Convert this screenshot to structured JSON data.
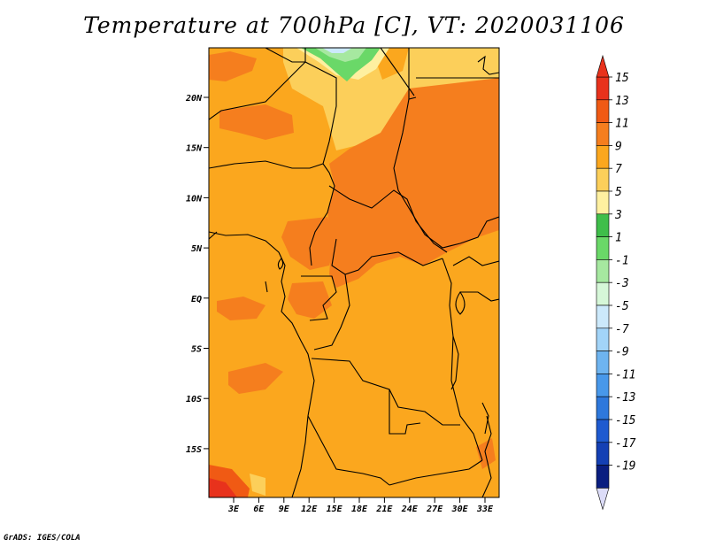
{
  "title": "Temperature at 700hPa [C], VT: 2020031106",
  "credit": "GrADS: IGES/COLA",
  "map": {
    "lon_ticks": [
      "3E",
      "6E",
      "9E",
      "12E",
      "15E",
      "18E",
      "21E",
      "24E",
      "27E",
      "30E",
      "33E"
    ],
    "lat_ticks": [
      "20N",
      "15N",
      "10N",
      "5N",
      "EQ",
      "5S",
      "10S",
      "15S"
    ]
  },
  "colorbar": {
    "labels": [
      "15",
      "13",
      "11",
      "9",
      "7",
      "5",
      "3",
      "1",
      "-1",
      "-3",
      "-5",
      "-7",
      "-9",
      "-11",
      "-13",
      "-15",
      "-17",
      "-19"
    ],
    "colors": [
      "#e8321c",
      "#f05a14",
      "#f57e1e",
      "#fba71e",
      "#fccf5a",
      "#fef0a0",
      "#3fbe4a",
      "#6ad868",
      "#a6e8a0",
      "#d6f7d8",
      "#cce9fb",
      "#a2d4f8",
      "#6eb4f0",
      "#4898ea",
      "#2e78dc",
      "#1e5ad0",
      "#1440b4",
      "#0a1e80"
    ],
    "top_arrow_color": "#e8321c",
    "bottom_arrow_color": "#dcdcf8"
  }
}
